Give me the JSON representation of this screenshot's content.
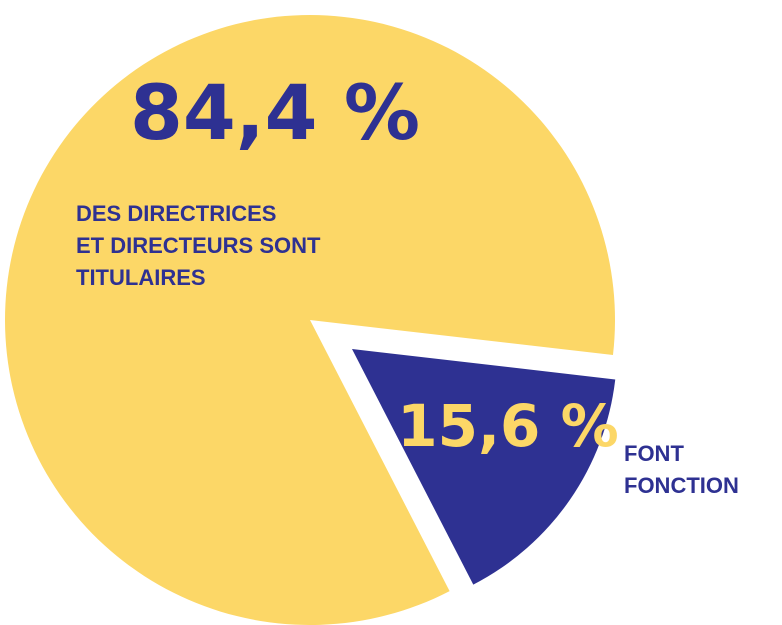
{
  "chart_data": {
    "type": "pie",
    "categories": [
      [
        "DES DIRECTRICES",
        "ET DIRECTEURS SONT",
        "TITULAIRES"
      ],
      [
        "FONT",
        "FONCTION"
      ]
    ],
    "values": [
      84.4,
      15.6
    ],
    "value_labels": [
      "84,4 %",
      "15,6 %"
    ],
    "colors": [
      "#fcd767",
      "#2e3192"
    ]
  }
}
